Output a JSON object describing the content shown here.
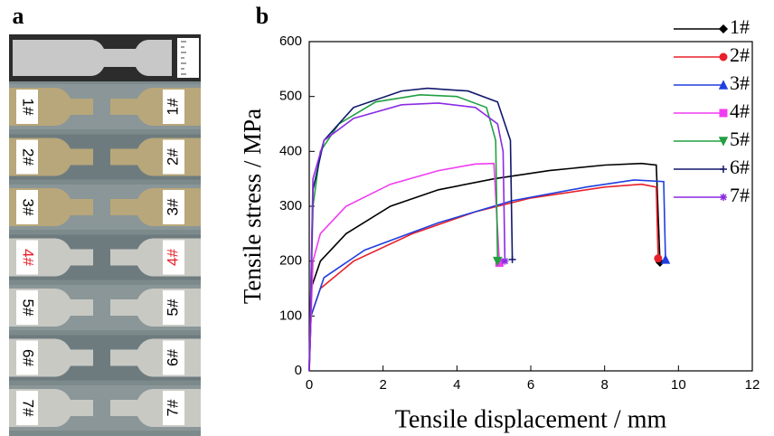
{
  "panel_labels": [
    "a",
    "b"
  ],
  "panel_a": {
    "specimens": [
      {
        "label": "1#",
        "color": "#000000"
      },
      {
        "label": "2#",
        "color": "#000000"
      },
      {
        "label": "3#",
        "color": "#000000"
      },
      {
        "label": "4#",
        "color": "#e8202a"
      },
      {
        "label": "5#",
        "color": "#000000"
      },
      {
        "label": "6#",
        "color": "#000000"
      },
      {
        "label": "7#",
        "color": "#000000"
      }
    ]
  },
  "chart_data": {
    "type": "line",
    "x_label": "Tensile displacement / mm",
    "y_label": "Tensile stress / MPa",
    "xlim": [
      0,
      12
    ],
    "xticks": [
      0,
      2,
      4,
      6,
      8,
      10,
      12
    ],
    "ylim": [
      0,
      600
    ],
    "yticks": [
      0,
      100,
      200,
      300,
      400,
      500,
      600
    ],
    "legend": "upper right",
    "series": [
      {
        "name": "1#",
        "color": "#000000",
        "marker": "diamond",
        "x": [
          0,
          0.05,
          0.3,
          1,
          2.2,
          3.5,
          5,
          6.5,
          8,
          9,
          9.4,
          9.5
        ],
        "values": [
          0,
          150,
          200,
          250,
          300,
          330,
          350,
          365,
          375,
          378,
          375,
          198
        ]
      },
      {
        "name": "2#",
        "color": "#e8202a",
        "marker": "circle",
        "x": [
          0,
          0.05,
          0.3,
          1.2,
          2.8,
          4.5,
          6,
          8,
          9,
          9.4,
          9.45
        ],
        "values": [
          0,
          100,
          150,
          200,
          250,
          290,
          315,
          335,
          340,
          335,
          205
        ]
      },
      {
        "name": "3#",
        "color": "#1f3fe0",
        "marker": "triangle",
        "x": [
          0,
          0.05,
          0.4,
          1.5,
          3.5,
          5.5,
          7.5,
          8.8,
          9.6,
          9.65
        ],
        "values": [
          0,
          100,
          170,
          220,
          270,
          310,
          335,
          348,
          345,
          203
        ]
      },
      {
        "name": "4#",
        "color": "#f03cf0",
        "marker": "square",
        "x": [
          0,
          0.1,
          0.3,
          1,
          2.2,
          3.5,
          4.5,
          5,
          5.15
        ],
        "values": [
          0,
          200,
          250,
          300,
          340,
          365,
          377,
          378,
          197
        ]
      },
      {
        "name": "5#",
        "color": "#20a040",
        "marker": "triangle-down",
        "x": [
          0,
          0.1,
          0.3,
          0.8,
          1.8,
          3,
          4,
          4.8,
          5.05,
          5.1
        ],
        "values": [
          0,
          300,
          400,
          450,
          490,
          503,
          500,
          480,
          420,
          200
        ]
      },
      {
        "name": "6#",
        "color": "#10186a",
        "marker": "plus",
        "x": [
          0,
          0.1,
          0.4,
          1.2,
          2.5,
          3.2,
          4.3,
          5.1,
          5.45,
          5.5
        ],
        "values": [
          0,
          330,
          420,
          480,
          510,
          515,
          510,
          490,
          420,
          203
        ]
      },
      {
        "name": "7#",
        "color": "#8a2be2",
        "marker": "star",
        "x": [
          0,
          0.1,
          0.4,
          1.2,
          2.5,
          3.5,
          4.5,
          5.1,
          5.25,
          5.3
        ],
        "values": [
          0,
          350,
          420,
          460,
          485,
          488,
          480,
          450,
          400,
          200
        ]
      }
    ]
  }
}
